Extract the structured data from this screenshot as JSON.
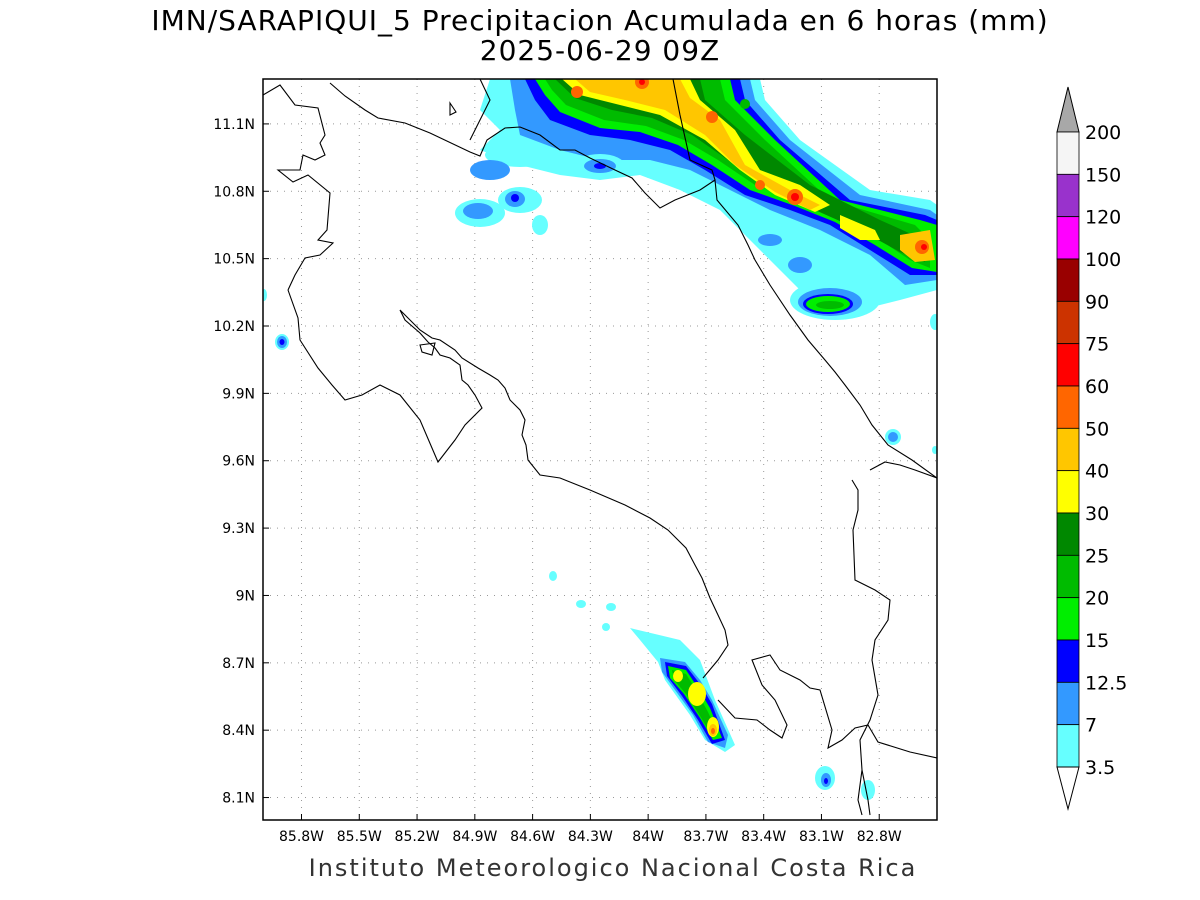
{
  "title": "IMN/SARAPIQUI_5 Precipitacion Acumulada en 6 horas (mm)",
  "subtitle": "2025-06-29 09Z",
  "footer": "Instituto Meteorologico Nacional Costa Rica",
  "map": {
    "lat_ticks": [
      {
        "label": "11.1N",
        "lat": 11.1
      },
      {
        "label": "10.8N",
        "lat": 10.8
      },
      {
        "label": "10.5N",
        "lat": 10.5
      },
      {
        "label": "10.2N",
        "lat": 10.2
      },
      {
        "label": "9.9N",
        "lat": 9.9
      },
      {
        "label": "9.6N",
        "lat": 9.6
      },
      {
        "label": "9.3N",
        "lat": 9.3
      },
      {
        "label": "9N",
        "lat": 9.0
      },
      {
        "label": "8.7N",
        "lat": 8.7
      },
      {
        "label": "8.4N",
        "lat": 8.4
      },
      {
        "label": "8.1N",
        "lat": 8.1
      }
    ],
    "lon_ticks": [
      {
        "label": "85.8W",
        "lon": -85.8
      },
      {
        "label": "85.5W",
        "lon": -85.5
      },
      {
        "label": "85.2W",
        "lon": -85.2
      },
      {
        "label": "84.9W",
        "lon": -84.9
      },
      {
        "label": "84.6W",
        "lon": -84.6
      },
      {
        "label": "84.3W",
        "lon": -84.3
      },
      {
        "label": "84W",
        "lon": -84.0
      },
      {
        "label": "83.7W",
        "lon": -83.7
      },
      {
        "label": "83.4W",
        "lon": -83.4
      },
      {
        "label": "83.1W",
        "lon": -83.1
      },
      {
        "label": "82.8W",
        "lon": -82.8
      }
    ],
    "extent": {
      "lon_min": -86.0,
      "lon_max": -82.5,
      "lat_min": 8.0,
      "lat_max": 11.3
    }
  },
  "colorbar": {
    "levels": [
      {
        "label": "200",
        "color": "#a8a8a8"
      },
      {
        "label": "150",
        "color": "#f5f5f5"
      },
      {
        "label": "120",
        "color": "#9932cc"
      },
      {
        "label": "100",
        "color": "#ff00ff"
      },
      {
        "label": "90",
        "color": "#990000"
      },
      {
        "label": "75",
        "color": "#cc3300"
      },
      {
        "label": "60",
        "color": "#ff0000"
      },
      {
        "label": "50",
        "color": "#ff6600"
      },
      {
        "label": "40",
        "color": "#ffc600"
      },
      {
        "label": "30",
        "color": "#ffff00"
      },
      {
        "label": "25",
        "color": "#008800"
      },
      {
        "label": "20",
        "color": "#00bb00"
      },
      {
        "label": "15",
        "color": "#00ee00"
      },
      {
        "label": "12.5",
        "color": "#0000ff"
      },
      {
        "label": "7",
        "color": "#3399ff"
      },
      {
        "label": "3.5",
        "color": "#66ffff"
      }
    ],
    "top_arrow_color": "#a8a8a8",
    "bottom_arrow_color": "#ffffff"
  }
}
